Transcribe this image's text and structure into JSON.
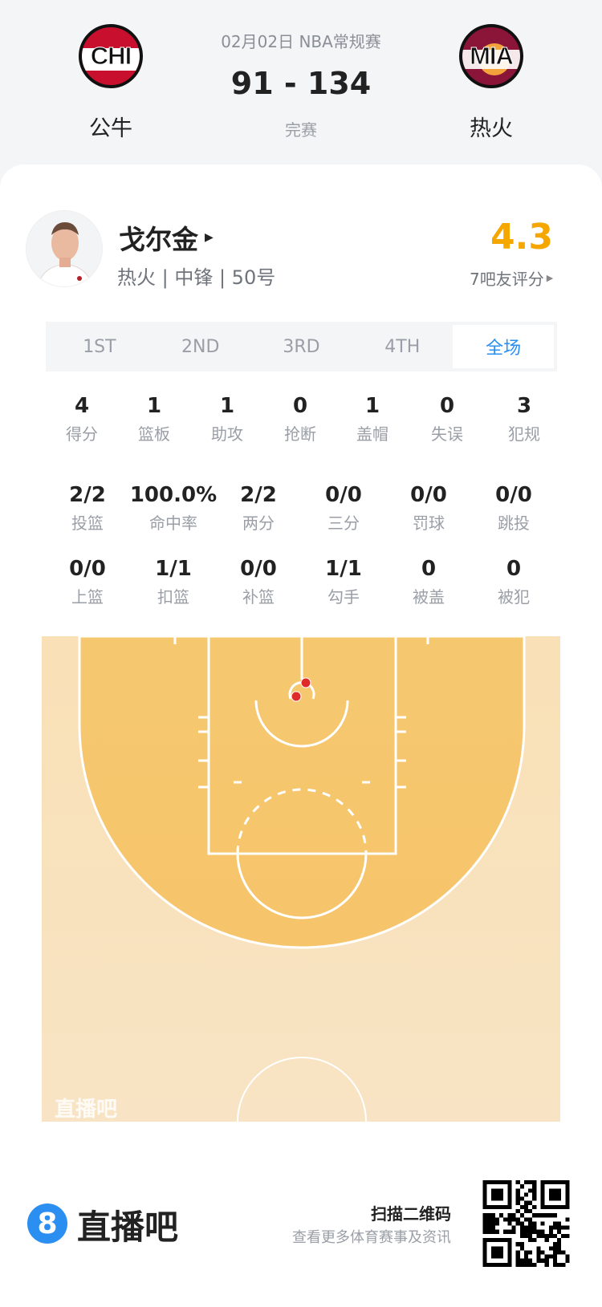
{
  "match": {
    "date_league": "02月02日 NBA常规赛",
    "score": "91 - 134",
    "status": "完赛",
    "home": {
      "abbr": "CHI",
      "name": "公牛"
    },
    "away": {
      "abbr": "MIA",
      "name": "热火"
    }
  },
  "player": {
    "name": "戈尔金",
    "info": "热火 | 中锋 | 50号",
    "rating": "4.3",
    "rating_label": "7吧友评分",
    "rating_color": "#f5a700"
  },
  "tabs": [
    {
      "label": "1ST"
    },
    {
      "label": "2ND"
    },
    {
      "label": "3RD"
    },
    {
      "label": "4TH"
    },
    {
      "label": "全场",
      "active": true
    }
  ],
  "stats_row1": [
    {
      "v": "4",
      "l": "得分"
    },
    {
      "v": "1",
      "l": "篮板"
    },
    {
      "v": "1",
      "l": "助攻"
    },
    {
      "v": "0",
      "l": "抢断"
    },
    {
      "v": "1",
      "l": "盖帽"
    },
    {
      "v": "0",
      "l": "失误"
    },
    {
      "v": "3",
      "l": "犯规"
    }
  ],
  "stats_row2": [
    {
      "v": "2/2",
      "l": "投篮"
    },
    {
      "v": "100.0%",
      "l": "命中率"
    },
    {
      "v": "2/2",
      "l": "两分"
    },
    {
      "v": "0/0",
      "l": "三分"
    },
    {
      "v": "0/0",
      "l": "罚球"
    },
    {
      "v": "0/0",
      "l": "跳投"
    }
  ],
  "stats_row3": [
    {
      "v": "0/0",
      "l": "上篮"
    },
    {
      "v": "1/1",
      "l": "扣篮"
    },
    {
      "v": "0/0",
      "l": "补篮"
    },
    {
      "v": "1/1",
      "l": "勾手"
    },
    {
      "v": "0",
      "l": "被盖"
    },
    {
      "v": "0",
      "l": "被犯"
    }
  ],
  "court": {
    "watermark": "直播吧",
    "shots_made": 2,
    "shot_color": "#e02a2a"
  },
  "footer": {
    "brand": "直播吧",
    "brand_number": "8",
    "qr_title": "扫描二维码",
    "qr_sub": "查看更多体育赛事及资讯",
    "accent": "#2a8ff0"
  }
}
